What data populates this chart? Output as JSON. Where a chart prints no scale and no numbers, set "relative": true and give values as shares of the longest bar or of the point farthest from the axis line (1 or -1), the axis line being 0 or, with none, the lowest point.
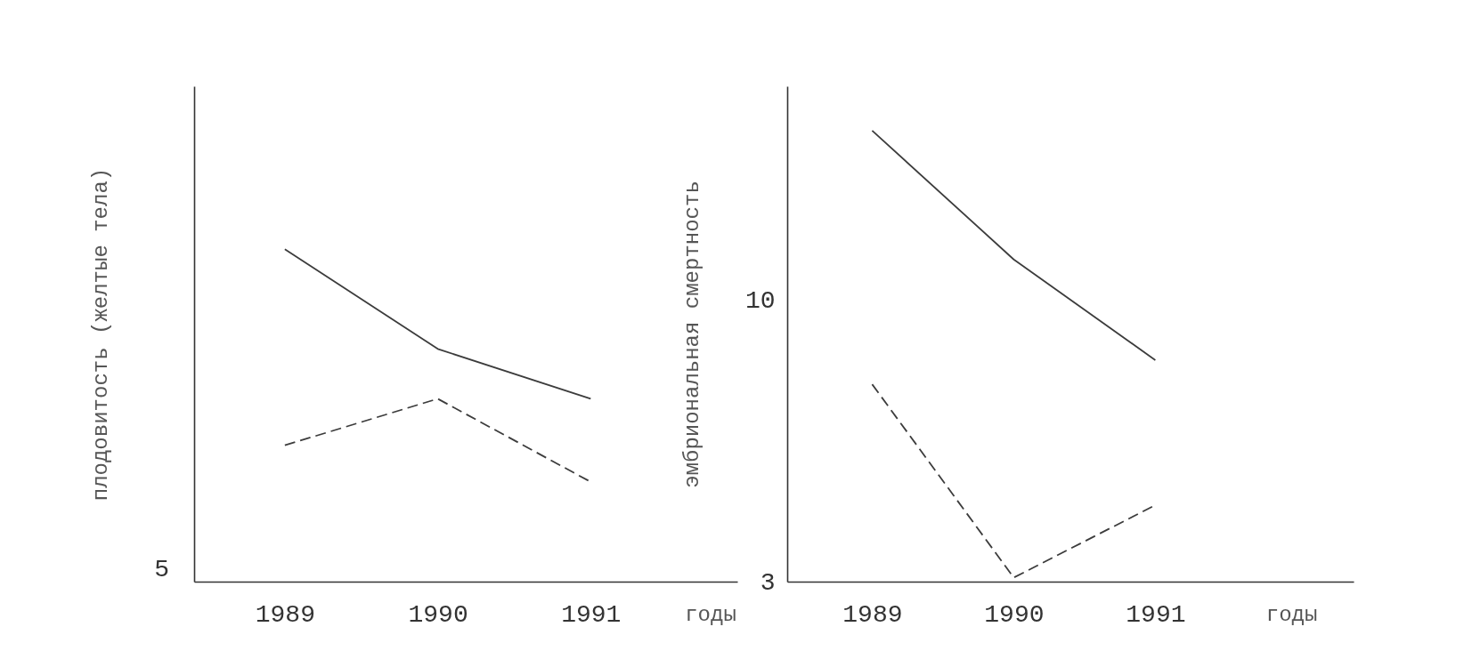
{
  "chart_data": [
    {
      "type": "line",
      "relative": true,
      "ylabel": "плодовитость (желтые тела)",
      "xlabel": "годы",
      "categories": [
        "1989",
        "1990",
        "1991"
      ],
      "annotations": [
        "5"
      ],
      "series": [
        {
          "color": "#3c3c3c",
          "line_style": "solid",
          "values": [
            1,
            0.7,
            0.55
          ]
        },
        {
          "color": "#3c3c3c",
          "line_style": "dashed",
          "values": [
            0.41,
            0.55,
            0.3
          ]
        }
      ]
    },
    {
      "type": "line",
      "ylabel": "эмбриональная смертность",
      "xlabel": "годы",
      "categories": [
        "1989",
        "1990",
        "1991"
      ],
      "ylim": [
        3,
        15.3
      ],
      "yticks": [
        3,
        10
      ],
      "series": [
        {
          "color": "#3c3c3c",
          "line_style": "solid",
          "values": [
            14.2,
            11,
            8.5
          ]
        },
        {
          "color": "#3c3c3c",
          "line_style": "dashed",
          "values": [
            7.9,
            3.1,
            4.9
          ]
        }
      ]
    }
  ]
}
